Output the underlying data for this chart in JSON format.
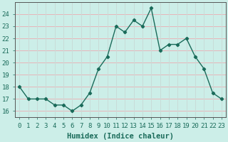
{
  "x": [
    0,
    1,
    2,
    3,
    4,
    5,
    6,
    7,
    8,
    9,
    10,
    11,
    12,
    13,
    14,
    15,
    16,
    17,
    18,
    19,
    20,
    21,
    22,
    23
  ],
  "y": [
    18.0,
    17.0,
    17.0,
    17.0,
    16.5,
    16.5,
    16.0,
    16.5,
    17.5,
    19.5,
    20.5,
    23.0,
    22.5,
    23.5,
    23.0,
    24.5,
    21.0,
    21.5,
    21.5,
    22.0,
    20.5,
    19.5,
    17.5,
    17.0
  ],
  "xlabel": "Humidex (Indice chaleur)",
  "ylim": [
    15.5,
    25.0
  ],
  "xlim": [
    -0.5,
    23.5
  ],
  "yticks": [
    16,
    17,
    18,
    19,
    20,
    21,
    22,
    23,
    24
  ],
  "xticks": [
    0,
    1,
    2,
    3,
    4,
    5,
    6,
    7,
    8,
    9,
    10,
    11,
    12,
    13,
    14,
    15,
    16,
    17,
    18,
    19,
    20,
    21,
    22,
    23
  ],
  "line_color": "#1a6b5a",
  "marker_color": "#1a6b5a",
  "bg_color": "#cceee8",
  "grid_color_h": "#e8b4b8",
  "grid_color_v": "#c8dcd8",
  "axis_color": "#555555",
  "font_color": "#1a6b5a",
  "xlabel_fontsize": 7.5,
  "tick_fontsize": 6.5
}
